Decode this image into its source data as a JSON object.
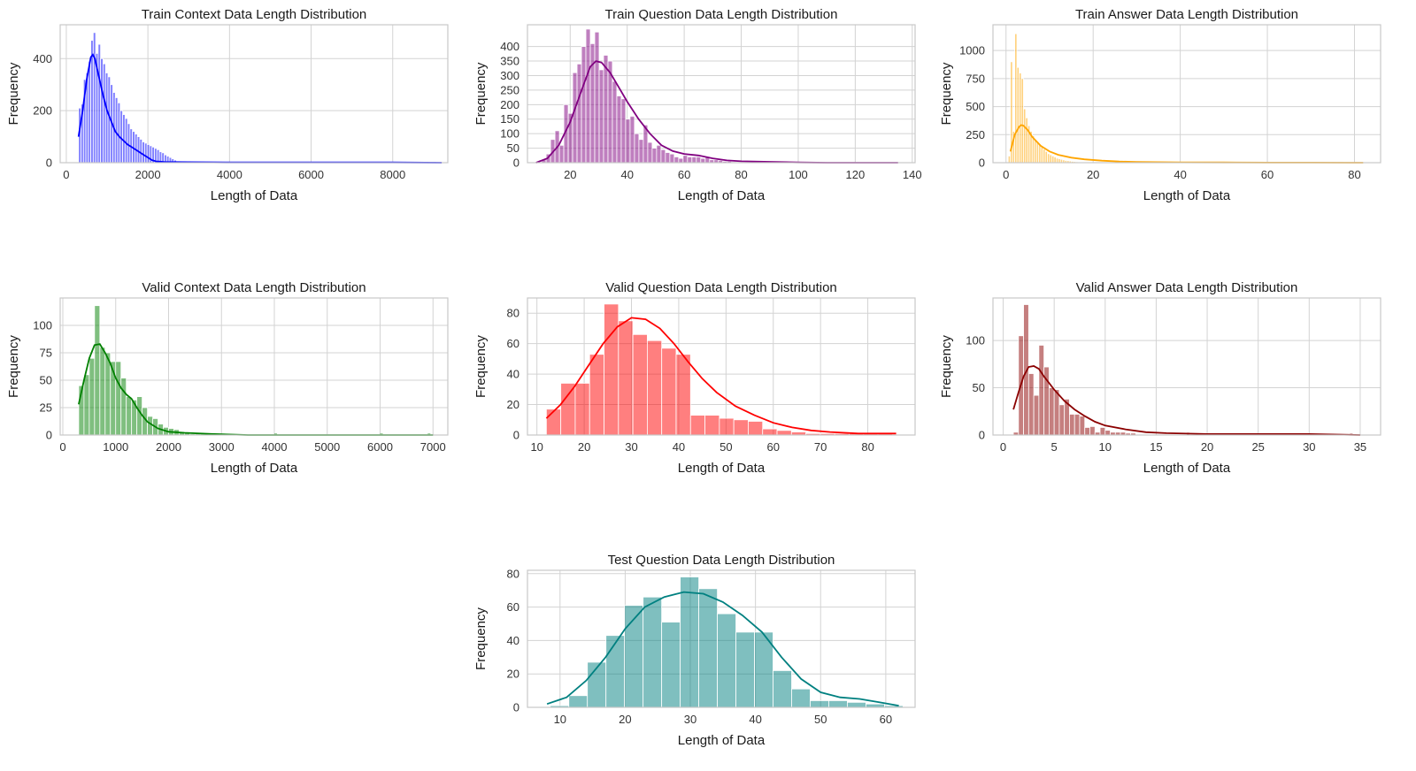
{
  "chart_data": [
    {
      "type": "histogram",
      "title": "Train Context Data Length Distribution",
      "xlabel": "Length of Data",
      "ylabel": "Frequency",
      "color": "#0000ff",
      "xlim": [
        -150,
        9350
      ],
      "ylim": [
        0,
        530
      ],
      "xticks": [
        0,
        2000,
        4000,
        6000,
        8000
      ],
      "yticks": [
        0,
        200,
        400
      ],
      "bin_start": 300,
      "bin_width": 60,
      "counts": [
        210,
        225,
        320,
        345,
        390,
        470,
        500,
        420,
        455,
        400,
        380,
        345,
        330,
        300,
        270,
        250,
        230,
        200,
        185,
        170,
        150,
        130,
        120,
        110,
        100,
        90,
        80,
        75,
        70,
        65,
        60,
        55,
        50,
        42,
        38,
        30,
        25,
        20,
        15,
        10,
        6,
        4,
        3,
        2,
        2,
        1,
        1,
        1,
        1,
        1
      ],
      "tail": [
        [
          2400,
          1
        ],
        [
          3000,
          1
        ],
        [
          3600,
          1
        ],
        [
          4800,
          1
        ],
        [
          6000,
          1
        ],
        [
          7200,
          1
        ],
        [
          8400,
          1
        ],
        [
          9000,
          1
        ]
      ],
      "kde": [
        [
          300,
          100
        ],
        [
          400,
          200
        ],
        [
          500,
          320
        ],
        [
          600,
          405
        ],
        [
          650,
          415
        ],
        [
          700,
          400
        ],
        [
          800,
          330
        ],
        [
          900,
          260
        ],
        [
          1000,
          200
        ],
        [
          1100,
          160
        ],
        [
          1200,
          120
        ],
        [
          1300,
          100
        ],
        [
          1400,
          85
        ],
        [
          1500,
          70
        ],
        [
          1600,
          60
        ],
        [
          1700,
          50
        ],
        [
          1800,
          40
        ],
        [
          1900,
          30
        ],
        [
          2000,
          20
        ],
        [
          2100,
          10
        ],
        [
          2200,
          5
        ],
        [
          2400,
          3
        ],
        [
          3000,
          2
        ],
        [
          4000,
          1
        ],
        [
          5000,
          1
        ],
        [
          6000,
          1
        ],
        [
          7000,
          1
        ],
        [
          8000,
          1
        ],
        [
          9200,
          0
        ]
      ]
    },
    {
      "type": "histogram",
      "title": "Train Question Data Length Distribution",
      "xlabel": "Length of Data",
      "ylabel": "Frequency",
      "color": "#800080",
      "xlim": [
        5,
        141
      ],
      "ylim": [
        0,
        475
      ],
      "xticks": [
        20,
        40,
        60,
        80,
        100,
        120,
        140
      ],
      "yticks": [
        0,
        50,
        100,
        150,
        200,
        250,
        300,
        350,
        400
      ],
      "bin_start": 10,
      "bin_width": 1.55,
      "counts": [
        10,
        30,
        80,
        110,
        60,
        200,
        170,
        310,
        340,
        400,
        460,
        410,
        450,
        320,
        370,
        350,
        280,
        230,
        220,
        150,
        160,
        100,
        80,
        130,
        70,
        50,
        60,
        45,
        35,
        30,
        20,
        15,
        25,
        20,
        20,
        20,
        15,
        18,
        10,
        10,
        8,
        5,
        5,
        3,
        2,
        2,
        1,
        1,
        1
      ],
      "tail": [],
      "kde": [
        [
          8,
          0
        ],
        [
          12,
          15
        ],
        [
          16,
          60
        ],
        [
          20,
          140
        ],
        [
          24,
          250
        ],
        [
          27,
          330
        ],
        [
          29,
          350
        ],
        [
          31,
          345
        ],
        [
          34,
          310
        ],
        [
          37,
          260
        ],
        [
          40,
          210
        ],
        [
          44,
          150
        ],
        [
          48,
          100
        ],
        [
          52,
          60
        ],
        [
          56,
          40
        ],
        [
          60,
          30
        ],
        [
          65,
          25
        ],
        [
          70,
          15
        ],
        [
          75,
          8
        ],
        [
          80,
          5
        ],
        [
          90,
          3
        ],
        [
          100,
          1
        ],
        [
          110,
          0
        ],
        [
          135,
          0
        ]
      ]
    },
    {
      "type": "histogram",
      "title": "Train Answer Data Length Distribution",
      "xlabel": "Length of Data",
      "ylabel": "Frequency",
      "color": "#ffa500",
      "xlim": [
        -3,
        86
      ],
      "ylim": [
        0,
        1230
      ],
      "xticks": [
        0,
        20,
        40,
        60,
        80
      ],
      "yticks": [
        0,
        250,
        500,
        750,
        1000
      ],
      "bin_start": 0.5,
      "bin_width": 0.5,
      "counts": [
        60,
        900,
        280,
        1150,
        850,
        800,
        750,
        480,
        400,
        330,
        280,
        240,
        200,
        180,
        160,
        140,
        120,
        100,
        80,
        70,
        60,
        50,
        40,
        35,
        30,
        25,
        20,
        18,
        15,
        12,
        10,
        8,
        6,
        5,
        4,
        3
      ],
      "tail": [
        [
          25,
          6
        ],
        [
          30,
          4
        ],
        [
          35,
          3
        ],
        [
          40,
          2
        ],
        [
          45,
          2
        ],
        [
          50,
          1
        ],
        [
          60,
          1
        ],
        [
          70,
          1
        ],
        [
          80,
          1
        ]
      ],
      "kde": [
        [
          1,
          100
        ],
        [
          2,
          250
        ],
        [
          3,
          320
        ],
        [
          3.5,
          335
        ],
        [
          4,
          330
        ],
        [
          5,
          290
        ],
        [
          6,
          230
        ],
        [
          8,
          150
        ],
        [
          10,
          100
        ],
        [
          12,
          70
        ],
        [
          15,
          45
        ],
        [
          18,
          30
        ],
        [
          22,
          18
        ],
        [
          26,
          10
        ],
        [
          30,
          6
        ],
        [
          40,
          3
        ],
        [
          50,
          2
        ],
        [
          60,
          1
        ],
        [
          70,
          1
        ],
        [
          82,
          0
        ]
      ]
    },
    {
      "type": "histogram",
      "title": "Valid Context Data Length Distribution",
      "xlabel": "Length of Data",
      "ylabel": "Frequency",
      "color": "#008000",
      "xlim": [
        -50,
        7280
      ],
      "ylim": [
        0,
        125
      ],
      "xticks": [
        0,
        1000,
        2000,
        3000,
        4000,
        5000,
        6000,
        7000
      ],
      "yticks": [
        0,
        25,
        50,
        75,
        100
      ],
      "bin_start": 300,
      "bin_width": 100,
      "counts": [
        45,
        55,
        70,
        118,
        80,
        75,
        67,
        67,
        52,
        35,
        32,
        35,
        25,
        17,
        15,
        10,
        7,
        6,
        5,
        3,
        2,
        1,
        1,
        1,
        1
      ],
      "tail": [
        [
          4000,
          1
        ],
        [
          6000,
          1
        ],
        [
          6900,
          1
        ]
      ],
      "kde": [
        [
          300,
          28
        ],
        [
          400,
          50
        ],
        [
          500,
          70
        ],
        [
          600,
          82
        ],
        [
          700,
          83
        ],
        [
          800,
          75
        ],
        [
          900,
          65
        ],
        [
          1000,
          52
        ],
        [
          1100,
          43
        ],
        [
          1200,
          37
        ],
        [
          1300,
          33
        ],
        [
          1400,
          25
        ],
        [
          1500,
          18
        ],
        [
          1600,
          12
        ],
        [
          1800,
          6
        ],
        [
          2000,
          3
        ],
        [
          2300,
          2
        ],
        [
          2800,
          1
        ],
        [
          3500,
          0
        ],
        [
          4000,
          0
        ],
        [
          5000,
          0
        ],
        [
          6000,
          0
        ],
        [
          7000,
          0
        ]
      ]
    },
    {
      "type": "histogram",
      "title": "Valid Question Data Length Distribution",
      "xlabel": "Length of Data",
      "ylabel": "Frequency",
      "color": "#ff0000",
      "xlim": [
        8,
        90
      ],
      "ylim": [
        0,
        90
      ],
      "xticks": [
        10,
        20,
        30,
        40,
        50,
        60,
        70,
        80
      ],
      "yticks": [
        0,
        20,
        40,
        60,
        80
      ],
      "bin_start": 12,
      "bin_width": 3.05,
      "counts": [
        17,
        34,
        34,
        53,
        86,
        75,
        66,
        62,
        57,
        53,
        13,
        13,
        11,
        10,
        9,
        4,
        3,
        2,
        1,
        1,
        1,
        1,
        1,
        1
      ],
      "tail": [],
      "kde": [
        [
          12,
          11
        ],
        [
          15,
          20
        ],
        [
          18,
          32
        ],
        [
          21,
          46
        ],
        [
          24,
          60
        ],
        [
          27,
          71
        ],
        [
          30,
          77
        ],
        [
          33,
          76
        ],
        [
          36,
          70
        ],
        [
          39,
          60
        ],
        [
          42,
          48
        ],
        [
          45,
          37
        ],
        [
          48,
          28
        ],
        [
          52,
          19
        ],
        [
          56,
          13
        ],
        [
          60,
          8
        ],
        [
          64,
          5
        ],
        [
          68,
          3
        ],
        [
          72,
          2
        ],
        [
          78,
          1
        ],
        [
          86,
          1
        ]
      ]
    },
    {
      "type": "histogram",
      "title": "Valid Answer Data Length Distribution",
      "xlabel": "Length of Data",
      "ylabel": "Frequency",
      "color": "#8b0000",
      "xlim": [
        -1,
        37
      ],
      "ylim": [
        0,
        145
      ],
      "xticks": [
        0,
        5,
        10,
        15,
        20,
        25,
        30,
        35
      ],
      "yticks": [
        0,
        50,
        100
      ],
      "bin_start": 1,
      "bin_width": 0.5,
      "counts": [
        3,
        105,
        138,
        65,
        42,
        95,
        72,
        50,
        48,
        32,
        38,
        22,
        22,
        20,
        8,
        9,
        3,
        8,
        5,
        3,
        3,
        3,
        2,
        2
      ],
      "tail": [
        [
          18,
          2
        ],
        [
          20,
          1
        ],
        [
          22,
          1
        ],
        [
          24,
          1
        ],
        [
          26,
          1
        ],
        [
          28,
          1
        ],
        [
          30,
          1
        ],
        [
          34,
          1
        ]
      ],
      "kde": [
        [
          1,
          27
        ],
        [
          1.5,
          45
        ],
        [
          2,
          62
        ],
        [
          2.5,
          72
        ],
        [
          3,
          73
        ],
        [
          3.5,
          70
        ],
        [
          4,
          62
        ],
        [
          5,
          48
        ],
        [
          6,
          36
        ],
        [
          7,
          27
        ],
        [
          8,
          20
        ],
        [
          9,
          14
        ],
        [
          10,
          10
        ],
        [
          12,
          6
        ],
        [
          14,
          3
        ],
        [
          16,
          2
        ],
        [
          20,
          1
        ],
        [
          25,
          1
        ],
        [
          30,
          1
        ],
        [
          35,
          0
        ]
      ]
    },
    {
      "type": "histogram",
      "title": "Test Question Data Length Distribution",
      "xlabel": "Length of Data",
      "ylabel": "Frequency",
      "color": "#008080",
      "xlim": [
        5,
        64.5
      ],
      "ylim": [
        0,
        82
      ],
      "xticks": [
        10,
        20,
        30,
        40,
        50,
        60
      ],
      "yticks": [
        0,
        20,
        40,
        60,
        80
      ],
      "bin_start": 8.5,
      "bin_width": 2.85,
      "counts": [
        1,
        7,
        27,
        43,
        61,
        66,
        51,
        78,
        71,
        56,
        45,
        45,
        22,
        11,
        4,
        4,
        3,
        2,
        1
      ],
      "tail": [],
      "kde": [
        [
          8,
          2
        ],
        [
          11,
          6
        ],
        [
          14,
          16
        ],
        [
          17,
          30
        ],
        [
          20,
          47
        ],
        [
          23,
          60
        ],
        [
          26,
          66
        ],
        [
          29,
          69
        ],
        [
          32,
          68
        ],
        [
          35,
          63
        ],
        [
          38,
          55
        ],
        [
          41,
          45
        ],
        [
          44,
          30
        ],
        [
          47,
          17
        ],
        [
          50,
          9
        ],
        [
          53,
          6
        ],
        [
          56,
          5
        ],
        [
          59,
          3
        ],
        [
          62,
          1
        ]
      ]
    }
  ]
}
